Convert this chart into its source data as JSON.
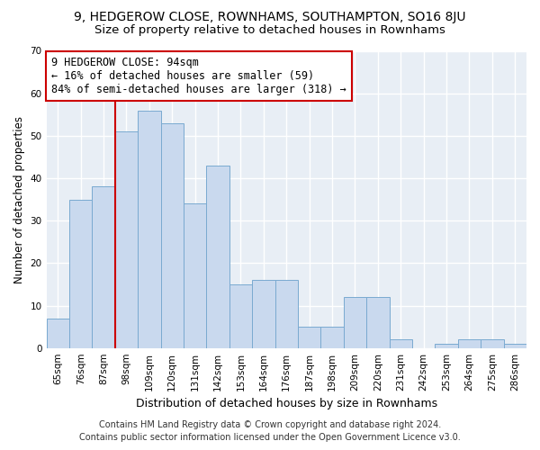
{
  "title": "9, HEDGEROW CLOSE, ROWNHAMS, SOUTHAMPTON, SO16 8JU",
  "subtitle": "Size of property relative to detached houses in Rownhams",
  "xlabel": "Distribution of detached houses by size in Rownhams",
  "ylabel": "Number of detached properties",
  "categories": [
    "65sqm",
    "76sqm",
    "87sqm",
    "98sqm",
    "109sqm",
    "120sqm",
    "131sqm",
    "142sqm",
    "153sqm",
    "164sqm",
    "176sqm",
    "187sqm",
    "198sqm",
    "209sqm",
    "220sqm",
    "231sqm",
    "242sqm",
    "253sqm",
    "264sqm",
    "275sqm",
    "286sqm"
  ],
  "values": [
    7,
    35,
    38,
    51,
    56,
    53,
    34,
    43,
    15,
    16,
    16,
    5,
    5,
    12,
    12,
    2,
    0,
    1,
    2,
    2,
    1
  ],
  "bar_color": "#c9d9ee",
  "bar_edge_color": "#7aaad0",
  "vline_color": "#cc0000",
  "vline_x_index": 2.5,
  "annotation_text": "9 HEDGEROW CLOSE: 94sqm\n← 16% of detached houses are smaller (59)\n84% of semi-detached houses are larger (318) →",
  "annotation_box_facecolor": "#ffffff",
  "annotation_box_edgecolor": "#cc0000",
  "ylim": [
    0,
    70
  ],
  "yticks": [
    0,
    10,
    20,
    30,
    40,
    50,
    60,
    70
  ],
  "fig_background": "#ffffff",
  "plot_background": "#e8eef5",
  "grid_color": "#ffffff",
  "grid_linewidth": 1.0,
  "title_fontsize": 10,
  "subtitle_fontsize": 9.5,
  "axis_label_fontsize": 8.5,
  "tick_fontsize": 7.5,
  "annotation_fontsize": 8.5,
  "footer_fontsize": 7.0,
  "footer_line1": "Contains HM Land Registry data © Crown copyright and database right 2024.",
  "footer_line2": "Contains public sector information licensed under the Open Government Licence v3.0."
}
